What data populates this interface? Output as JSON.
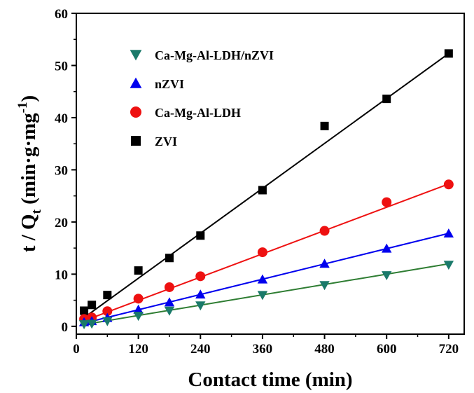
{
  "chart_data": {
    "type": "scatter",
    "title": "",
    "xlabel": "Contact time (min)",
    "ylabel": {
      "t": "t / Q",
      "sub": "t",
      "units": " (min·g·mg",
      "sup": "-1",
      "close": ")"
    },
    "xlim": [
      0,
      750
    ],
    "ylim": [
      -1.5,
      60
    ],
    "xticks": [
      "0",
      "120",
      "240",
      "360",
      "480",
      "600",
      "720"
    ],
    "xtick_values": [
      0,
      120,
      240,
      360,
      480,
      600,
      720
    ],
    "yticks": [
      "0",
      "10",
      "20",
      "30",
      "40",
      "50",
      "60"
    ],
    "ytick_values": [
      0,
      10,
      20,
      30,
      40,
      50,
      60
    ],
    "grid": false,
    "legend_position": "top-left",
    "series": [
      {
        "name": "Ca-Mg-Al-LDH/nZVI",
        "marker": "triangle-down",
        "color": "#1a7a6a",
        "line_color": "#2e7d32",
        "x": [
          15,
          30,
          60,
          120,
          180,
          240,
          360,
          480,
          600,
          720
        ],
        "y": [
          0.4,
          0.5,
          1.0,
          2.0,
          3.0,
          4.0,
          6.0,
          7.9,
          9.8,
          11.8
        ],
        "fit": [
          0.1,
          0.0165
        ]
      },
      {
        "name": "nZVI",
        "marker": "triangle-up",
        "color": "#0000ee",
        "line_color": "#0000ee",
        "x": [
          15,
          30,
          60,
          120,
          180,
          240,
          360,
          480,
          600,
          720
        ],
        "y": [
          0.8,
          1.0,
          1.6,
          3.2,
          4.6,
          6.1,
          9.0,
          12.0,
          14.9,
          17.8
        ],
        "fit": [
          0.25,
          0.0244
        ]
      },
      {
        "name": "Ca-Mg-Al-LDH",
        "marker": "circle",
        "color": "#ee1111",
        "line_color": "#ee1111",
        "x": [
          15,
          30,
          60,
          120,
          180,
          240,
          360,
          480,
          600,
          720
        ],
        "y": [
          1.4,
          1.7,
          2.9,
          5.3,
          7.5,
          9.6,
          14.2,
          18.3,
          23.8,
          27.2
        ],
        "fit": [
          0.5,
          0.0372
        ]
      },
      {
        "name": "ZVI",
        "marker": "square",
        "color": "#000000",
        "line_color": "#000000",
        "x": [
          15,
          30,
          60,
          120,
          180,
          240,
          360,
          480,
          600,
          720
        ],
        "y": [
          3.0,
          4.1,
          6.0,
          10.7,
          13.1,
          17.4,
          26.1,
          38.4,
          43.6,
          52.3
        ],
        "fit": [
          0.6,
          0.0718
        ]
      }
    ]
  }
}
